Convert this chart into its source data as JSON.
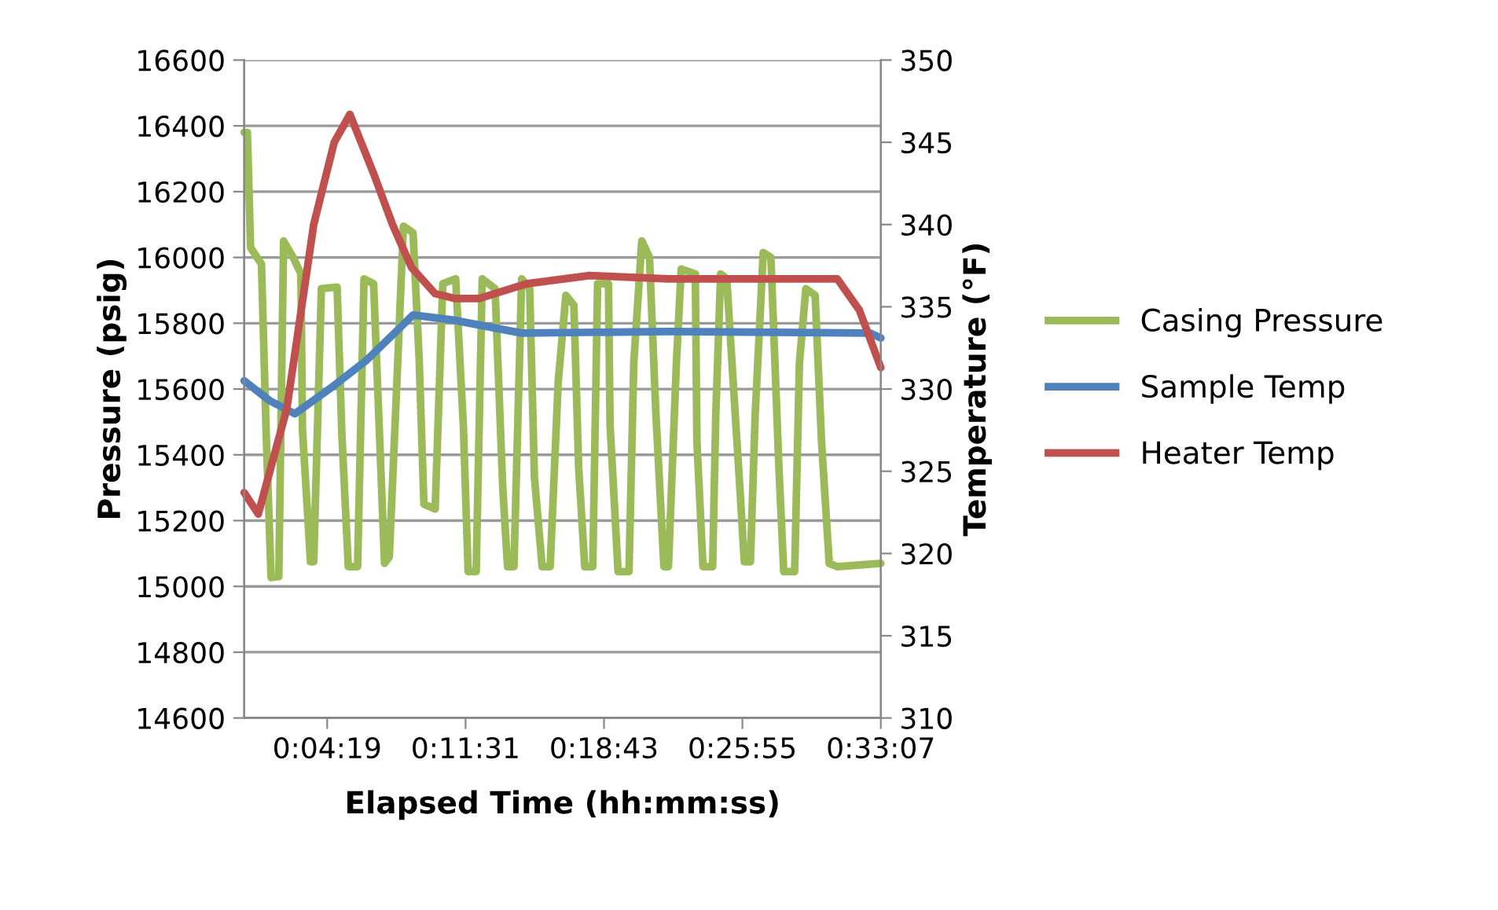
{
  "chart_data": {
    "type": "line",
    "xlabel": "Elapsed Time (hh:mm:ss)",
    "ylabel": "Pressure (psig)",
    "y2label": "Temperature (°F)",
    "xlim": [
      0,
      1987
    ],
    "xticks": [
      {
        "value": 259,
        "label": "0:04:19"
      },
      {
        "value": 691,
        "label": "0:11:31"
      },
      {
        "value": 1123,
        "label": "0:18:43"
      },
      {
        "value": 1555,
        "label": "0:25:55"
      },
      {
        "value": 1987,
        "label": "0:33:07"
      }
    ],
    "ylim": [
      14600,
      16600
    ],
    "yticks": [
      14600,
      14800,
      15000,
      15200,
      15400,
      15600,
      15800,
      16000,
      16200,
      16400,
      16600
    ],
    "y2lim": [
      310,
      350
    ],
    "y2ticks": [
      310,
      315,
      320,
      325,
      330,
      335,
      340,
      345,
      350
    ],
    "grid": "y",
    "legend": "right",
    "marker": "none",
    "line_style": "solid",
    "series": [
      {
        "name": "Casing Pressure",
        "color": "#9bbb59",
        "x": [
          0,
          10,
          20,
          54,
          69,
          84,
          108,
          123,
          153,
          177,
          182,
          207,
          217,
          241,
          290,
          305,
          325,
          354,
          374,
          404,
          438,
          453,
          477,
          497,
          527,
          546,
          561,
          596,
          620,
          660,
          684,
          699,
          724,
          743,
          783,
          807,
          822,
          842,
          866,
          891,
          906,
          930,
          955,
          980,
          1004,
          1029,
          1044,
          1063,
          1088,
          1103,
          1137,
          1142,
          1167,
          1201,
          1216,
          1241,
          1265,
          1285,
          1310,
          1324,
          1349,
          1364,
          1408,
          1413,
          1432,
          1462,
          1472,
          1487,
          1506,
          1546,
          1561,
          1580,
          1595,
          1620,
          1644,
          1669,
          1684,
          1718,
          1733,
          1753,
          1782,
          1802,
          1826,
          1851,
          1987
        ],
        "values": [
          16380,
          16380,
          16030,
          15980,
          15455,
          15027,
          15030,
          16050,
          16000,
          15950,
          15475,
          15075,
          15075,
          15905,
          15910,
          15460,
          15060,
          15060,
          15935,
          15920,
          15070,
          15090,
          15630,
          16095,
          16075,
          15695,
          15250,
          15235,
          15920,
          15935,
          15490,
          15045,
          15045,
          15935,
          15905,
          15300,
          15060,
          15060,
          15935,
          15905,
          15330,
          15060,
          15060,
          15620,
          15885,
          15855,
          15360,
          15060,
          15060,
          15920,
          15920,
          15490,
          15045,
          15045,
          15680,
          16050,
          16000,
          15525,
          15060,
          15060,
          15680,
          15965,
          15950,
          15440,
          15060,
          15060,
          15525,
          15950,
          15935,
          15315,
          15075,
          15075,
          15525,
          16015,
          16000,
          15360,
          15045,
          15045,
          15680,
          15905,
          15885,
          15440,
          15070,
          15060,
          15070
        ]
      },
      {
        "name": "Sample Temp",
        "color": "#4f81bd",
        "axis": "y2",
        "x": [
          0,
          79,
          158,
          266,
          379,
          527,
          650,
          866,
          1324,
          1954,
          1987
        ],
        "values": [
          330.5,
          329.3,
          328.5,
          330.0,
          331.7,
          334.5,
          334.2,
          333.4,
          333.5,
          333.4,
          333.1
        ]
      },
      {
        "name": "Heater Temp",
        "color": "#c0504d",
        "axis": "y2",
        "x": [
          0,
          44,
          133,
          217,
          281,
          330,
          404,
          463,
          522,
          596,
          660,
          733,
          881,
          1078,
          1324,
          1851,
          1920,
          1987
        ],
        "values": [
          323.7,
          322.4,
          328.8,
          340.0,
          345.0,
          346.7,
          343.1,
          340.0,
          337.4,
          335.8,
          335.5,
          335.5,
          336.4,
          336.9,
          336.7,
          336.7,
          334.8,
          331.3
        ]
      }
    ]
  }
}
